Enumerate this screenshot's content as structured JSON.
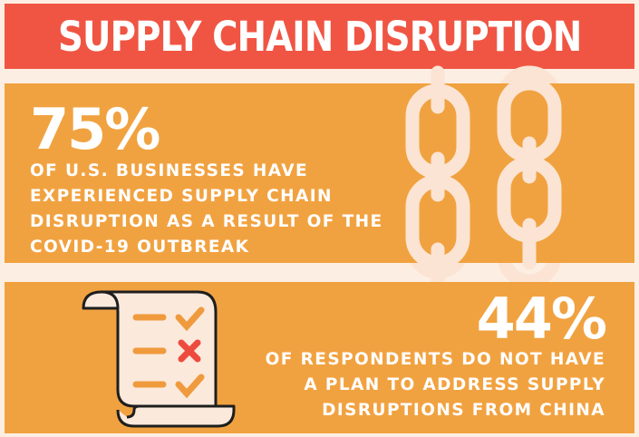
{
  "banner": {
    "title": "SUPPLY CHAIN DISRUPTION"
  },
  "stat1": {
    "value": "75%",
    "lines": [
      "OF U.S. BUSINESSES HAVE",
      "EXPERIENCED SUPPLY CHAIN",
      "DISRUPTION AS A RESULT OF THE",
      "COVID-19 OUTBREAK"
    ]
  },
  "stat2": {
    "value": "44%",
    "lines": [
      "OF RESPONDENTS DO NOT HAVE",
      "A PLAN TO ADDRESS SUPPLY",
      "DISRUPTIONS FROM CHINA"
    ]
  },
  "icons": {
    "chain": "chain-icon",
    "checklist": "checklist-scroll-icon"
  },
  "colors": {
    "background": "#fdeee3",
    "banner": "#f05543",
    "panel": "#f1a240",
    "chain": "#fbe4d3",
    "check": "#f09a3e",
    "cross": "#ee4b3f"
  }
}
